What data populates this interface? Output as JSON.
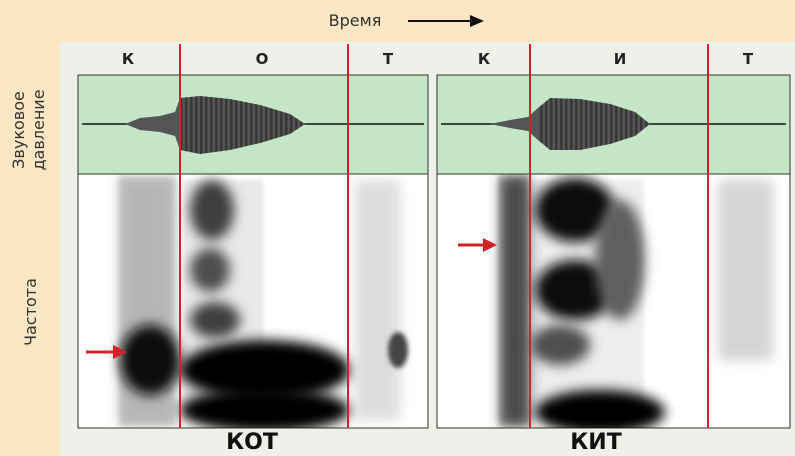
{
  "axis_labels": {
    "time": "Время",
    "pressure": [
      "Звуковое",
      "давление"
    ],
    "frequency": "Частота"
  },
  "words": [
    {
      "label": "КОТ",
      "segments": [
        "К",
        "О",
        "Т"
      ]
    },
    {
      "label": "КИТ",
      "segments": [
        "К",
        "И",
        "Т"
      ]
    }
  ]
}
